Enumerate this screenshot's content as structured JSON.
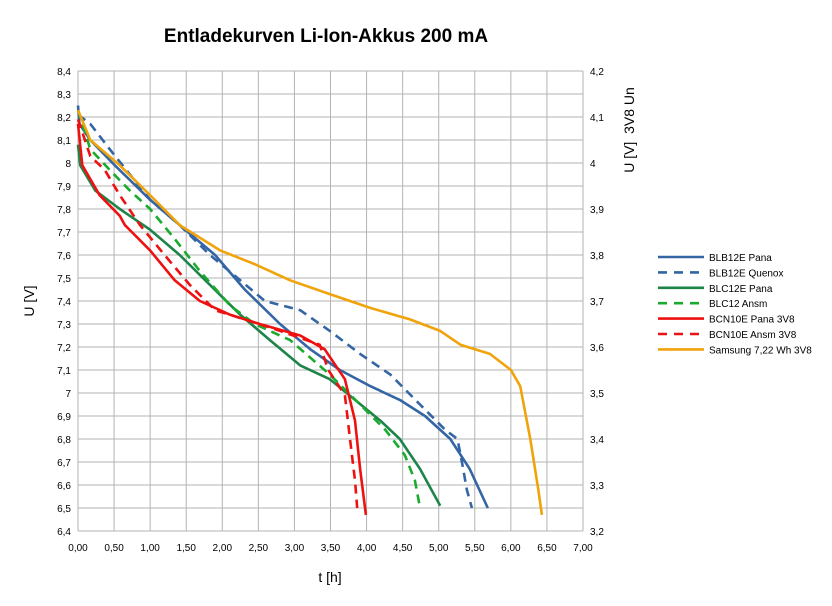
{
  "chart_data": {
    "type": "line",
    "title": "Entladekurven Li-Ion-Akkus 200 mA",
    "xlabel": "t [h]",
    "ylabel": "U [V]",
    "y2label": "U [V]  3V8 Un",
    "xlim": [
      0,
      7
    ],
    "ylim": [
      6.4,
      8.4
    ],
    "y2lim": [
      3.2,
      4.2
    ],
    "grid": true,
    "legend": "right",
    "xticks": [
      "0,00",
      "0,50",
      "1,00",
      "1,50",
      "2,00",
      "2,50",
      "3,00",
      "3,50",
      "4,00",
      "4,50",
      "5,00",
      "5,50",
      "6,00",
      "6,50",
      "7,00"
    ],
    "yticks": [
      "6,4",
      "6,5",
      "6,6",
      "6,7",
      "6,8",
      "6,9",
      "7",
      "7,1",
      "7,2",
      "7,3",
      "7,4",
      "7,5",
      "7,6",
      "7,7",
      "7,8",
      "7,9",
      "8",
      "8,1",
      "8,2",
      "8,3",
      "8,4"
    ],
    "y2ticks": [
      "3,2",
      "3,3",
      "3,4",
      "3,5",
      "3,6",
      "3,7",
      "3,8",
      "3,9",
      "4",
      "4,1",
      "4,2"
    ],
    "series": [
      {
        "name": "BLB12E Pana",
        "color": "#3465a4",
        "dash": false,
        "points": [
          [
            0,
            8.25
          ],
          [
            0.02,
            8.17
          ],
          [
            0.17,
            8.1
          ],
          [
            0.51,
            7.99
          ],
          [
            1.0,
            7.84
          ],
          [
            1.41,
            7.73
          ],
          [
            1.9,
            7.6
          ],
          [
            2.31,
            7.45
          ],
          [
            2.8,
            7.3
          ],
          [
            3.22,
            7.19
          ],
          [
            3.63,
            7.1
          ],
          [
            4.05,
            7.03
          ],
          [
            4.46,
            6.97
          ],
          [
            4.81,
            6.9
          ],
          [
            5.16,
            6.8
          ],
          [
            5.43,
            6.67
          ],
          [
            5.68,
            6.5
          ]
        ]
      },
      {
        "name": "BLB12E Quenox",
        "color": "#3465a4",
        "dash": true,
        "points": [
          [
            0,
            8.21
          ],
          [
            0.17,
            8.17
          ],
          [
            0.44,
            8.06
          ],
          [
            1.0,
            7.84
          ],
          [
            1.41,
            7.73
          ],
          [
            1.83,
            7.6
          ],
          [
            2.25,
            7.49
          ],
          [
            2.59,
            7.4
          ],
          [
            3.08,
            7.36
          ],
          [
            3.49,
            7.27
          ],
          [
            3.91,
            7.17
          ],
          [
            4.33,
            7.08
          ],
          [
            4.74,
            6.95
          ],
          [
            5.09,
            6.84
          ],
          [
            5.26,
            6.8
          ],
          [
            5.34,
            6.67
          ],
          [
            5.39,
            6.58
          ],
          [
            5.46,
            6.5
          ]
        ]
      },
      {
        "name": "BLC12E Pana",
        "color": "#1e8449",
        "dash": false,
        "points": [
          [
            0,
            8.08
          ],
          [
            0.03,
            7.99
          ],
          [
            0.24,
            7.88
          ],
          [
            0.58,
            7.8
          ],
          [
            1.0,
            7.71
          ],
          [
            1.41,
            7.6
          ],
          [
            1.83,
            7.47
          ],
          [
            2.25,
            7.34
          ],
          [
            2.66,
            7.23
          ],
          [
            3.08,
            7.12
          ],
          [
            3.49,
            7.06
          ],
          [
            3.84,
            6.97
          ],
          [
            4.19,
            6.88
          ],
          [
            4.46,
            6.8
          ],
          [
            4.74,
            6.67
          ],
          [
            5.02,
            6.51
          ]
        ]
      },
      {
        "name": "BLC12 Ansm",
        "color": "#1aab2e",
        "dash": true,
        "points": [
          [
            0,
            8.23
          ],
          [
            0.17,
            8.06
          ],
          [
            0.44,
            7.97
          ],
          [
            0.72,
            7.88
          ],
          [
            1.0,
            7.8
          ],
          [
            1.34,
            7.67
          ],
          [
            1.69,
            7.53
          ],
          [
            2.11,
            7.38
          ],
          [
            2.45,
            7.3
          ],
          [
            2.94,
            7.23
          ],
          [
            3.49,
            7.08
          ],
          [
            3.91,
            6.95
          ],
          [
            4.26,
            6.84
          ],
          [
            4.53,
            6.73
          ],
          [
            4.67,
            6.62
          ],
          [
            4.73,
            6.52
          ]
        ]
      },
      {
        "name": "BCN10E Pana 3V8",
        "color": "#ee1111",
        "dash": false,
        "points": [
          [
            0,
            8.17
          ],
          [
            0.06,
            7.99
          ],
          [
            0.3,
            7.86
          ],
          [
            0.58,
            7.77
          ],
          [
            0.65,
            7.73
          ],
          [
            1.0,
            7.62
          ],
          [
            1.34,
            7.49
          ],
          [
            1.69,
            7.4
          ],
          [
            2.11,
            7.34
          ],
          [
            2.52,
            7.3
          ],
          [
            3.08,
            7.25
          ],
          [
            3.42,
            7.19
          ],
          [
            3.7,
            7.06
          ],
          [
            3.84,
            6.88
          ],
          [
            3.91,
            6.67
          ],
          [
            3.99,
            6.47
          ]
        ]
      },
      {
        "name": "BCN10E Ansm 3V8",
        "color": "#ee1111",
        "dash": true,
        "points": [
          [
            0,
            8.19
          ],
          [
            0.17,
            8.03
          ],
          [
            0.37,
            7.97
          ],
          [
            0.58,
            7.86
          ],
          [
            0.86,
            7.73
          ],
          [
            1.2,
            7.6
          ],
          [
            1.55,
            7.47
          ],
          [
            1.9,
            7.36
          ],
          [
            2.31,
            7.32
          ],
          [
            2.8,
            7.27
          ],
          [
            3.35,
            7.21
          ],
          [
            3.47,
            7.1
          ],
          [
            3.7,
            6.99
          ],
          [
            3.77,
            6.8
          ],
          [
            3.84,
            6.62
          ],
          [
            3.87,
            6.5
          ]
        ]
      },
      {
        "name": "Samsung 7,22 Wh 3V8",
        "color": "#f0a30a",
        "dash": false,
        "points": [
          [
            0,
            8.23
          ],
          [
            0.17,
            8.1
          ],
          [
            0.58,
            7.99
          ],
          [
            1.0,
            7.86
          ],
          [
            1.41,
            7.73
          ],
          [
            1.97,
            7.62
          ],
          [
            2.45,
            7.56
          ],
          [
            2.94,
            7.49
          ],
          [
            3.49,
            7.43
          ],
          [
            4.05,
            7.37
          ],
          [
            4.6,
            7.32
          ],
          [
            5.02,
            7.27
          ],
          [
            5.3,
            7.21
          ],
          [
            5.71,
            7.17
          ],
          [
            6.0,
            7.1
          ],
          [
            6.13,
            7.03
          ],
          [
            6.27,
            6.8
          ],
          [
            6.38,
            6.58
          ],
          [
            6.43,
            6.47
          ]
        ]
      }
    ]
  }
}
